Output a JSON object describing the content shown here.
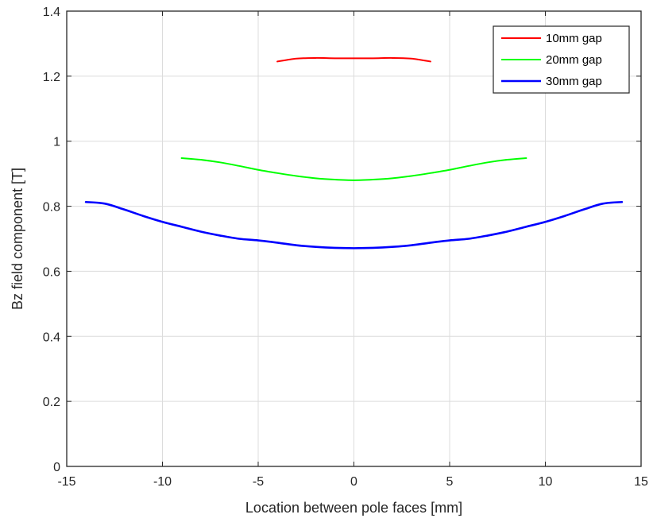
{
  "chart_data": {
    "type": "line",
    "xlabel": "Location between pole faces [mm]",
    "ylabel": "Bz field component [T]",
    "xlim": [
      -15,
      15
    ],
    "ylim": [
      0,
      1.4
    ],
    "xticks": [
      -15,
      -10,
      -5,
      0,
      5,
      10,
      15
    ],
    "xtick_labels": [
      "-15",
      "-10",
      "-5",
      "0",
      "5",
      "10",
      "15"
    ],
    "yticks": [
      0,
      0.2,
      0.4,
      0.6,
      0.8,
      1.0,
      1.2,
      1.4
    ],
    "ytick_labels": [
      "0",
      "0.2",
      "0.4",
      "0.6",
      "0.8",
      "1",
      "1.2",
      "1.4"
    ],
    "grid": true,
    "legend_position": "top-right",
    "series": [
      {
        "name": "10mm gap",
        "color": "#ff0000",
        "x": [
          -4,
          -3,
          -2,
          -1,
          0,
          1,
          2,
          3,
          4
        ],
        "y": [
          1.245,
          1.254,
          1.256,
          1.255,
          1.255,
          1.255,
          1.256,
          1.254,
          1.245
        ]
      },
      {
        "name": "20mm gap",
        "color": "#00ff00",
        "x": [
          -9,
          -8,
          -7,
          -6,
          -5,
          -4,
          -3,
          -2,
          -1,
          0,
          1,
          2,
          3,
          4,
          5,
          6,
          7,
          8,
          9
        ],
        "y": [
          0.948,
          0.943,
          0.935,
          0.924,
          0.912,
          0.902,
          0.893,
          0.886,
          0.882,
          0.88,
          0.882,
          0.886,
          0.893,
          0.902,
          0.912,
          0.924,
          0.935,
          0.943,
          0.948
        ]
      },
      {
        "name": "30mm gap",
        "color": "#0000ff",
        "x": [
          -14,
          -13,
          -12,
          -11,
          -10,
          -9,
          -8,
          -7,
          -6,
          -5,
          -4,
          -3,
          -2,
          -1,
          0,
          1,
          2,
          3,
          4,
          5,
          6,
          7,
          8,
          9,
          10,
          11,
          12,
          13,
          14
        ],
        "y": [
          0.813,
          0.808,
          0.79,
          0.77,
          0.752,
          0.737,
          0.722,
          0.71,
          0.7,
          0.695,
          0.688,
          0.68,
          0.675,
          0.672,
          0.671,
          0.672,
          0.675,
          0.68,
          0.688,
          0.695,
          0.7,
          0.71,
          0.722,
          0.737,
          0.752,
          0.77,
          0.79,
          0.808,
          0.813
        ]
      }
    ]
  }
}
